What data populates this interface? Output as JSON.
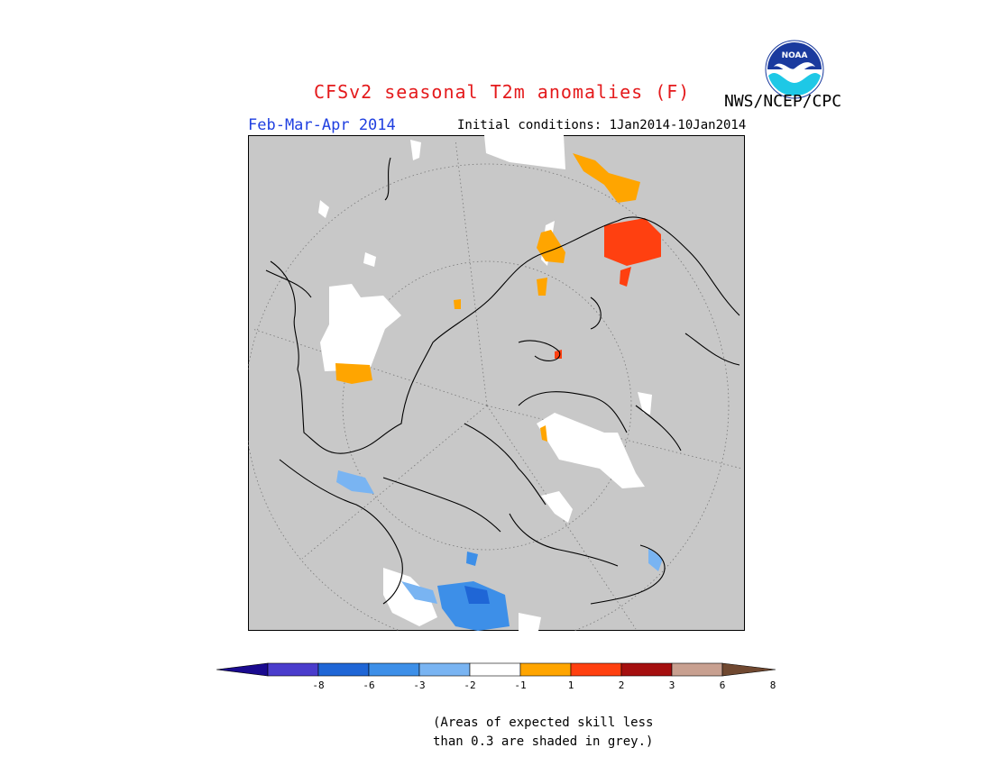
{
  "header": {
    "title": "CFSv2 seasonal T2m anomalies (F)",
    "period": "Feb-Mar-Apr 2014",
    "initial_conditions": "Initial conditions: 1Jan2014-10Jan2014",
    "agency": "NWS/NCEP/CPC",
    "logo_text": "NOAA"
  },
  "colors": {
    "title": "#e41a1c",
    "period": "#1f3fe0",
    "skill_mask_grey": "#c8c8c8"
  },
  "map": {
    "projection": "north-polar-stereographic",
    "mask_note_line1": "(Areas of expected skill less",
    "mask_note_line2": "than 0.3 are shaded in grey.)"
  },
  "legend": {
    "colors": [
      "#1a0a8f",
      "#4a3ccc",
      "#1f66d6",
      "#3d8fe8",
      "#79b4f2",
      "#ffffff",
      "#ffa500",
      "#ff4010",
      "#a50f0f",
      "#c8a090",
      "#704830"
    ],
    "tick_labels": [
      "-8",
      "-6",
      "-3",
      "-2",
      "-1",
      "1",
      "2",
      "3",
      "6",
      "8"
    ]
  }
}
